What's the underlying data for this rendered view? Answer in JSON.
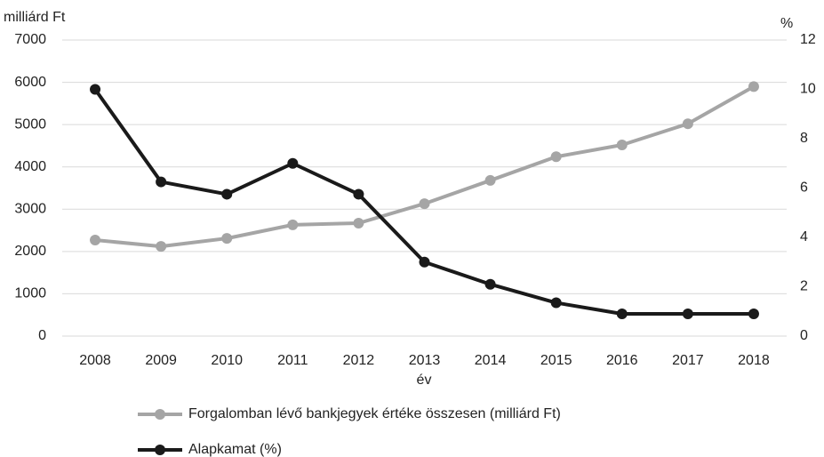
{
  "chart_data": {
    "type": "line",
    "y_label": "milliárd Ft",
    "y2_label": "%",
    "x_label": "év",
    "categories": [
      "2008",
      "2009",
      "2010",
      "2011",
      "2012",
      "2013",
      "2014",
      "2015",
      "2016",
      "2017",
      "2018"
    ],
    "series": [
      {
        "name": "Forgalomban lévő bankjegyek értéke összesen (milliárd Ft)",
        "color": "#a5a5a5",
        "axis": "y",
        "values": [
          2270,
          2120,
          2310,
          2630,
          2670,
          3130,
          3680,
          4240,
          4520,
          5020,
          5900
        ]
      },
      {
        "name": "Alapkamat (%)",
        "color": "#1a1a1a",
        "axis": "y2",
        "values": [
          10,
          6.25,
          5.75,
          7,
          5.75,
          3,
          2.1,
          1.35,
          0.9,
          0.9,
          0.9
        ]
      }
    ],
    "ylim": [
      0,
      7000
    ],
    "yticks": [
      0,
      1000,
      2000,
      3000,
      4000,
      5000,
      6000,
      7000
    ],
    "y2lim": [
      0,
      12
    ],
    "y2ticks": [
      0,
      2,
      4,
      6,
      8,
      10,
      12
    ],
    "grid": true,
    "legend": "bottom"
  }
}
